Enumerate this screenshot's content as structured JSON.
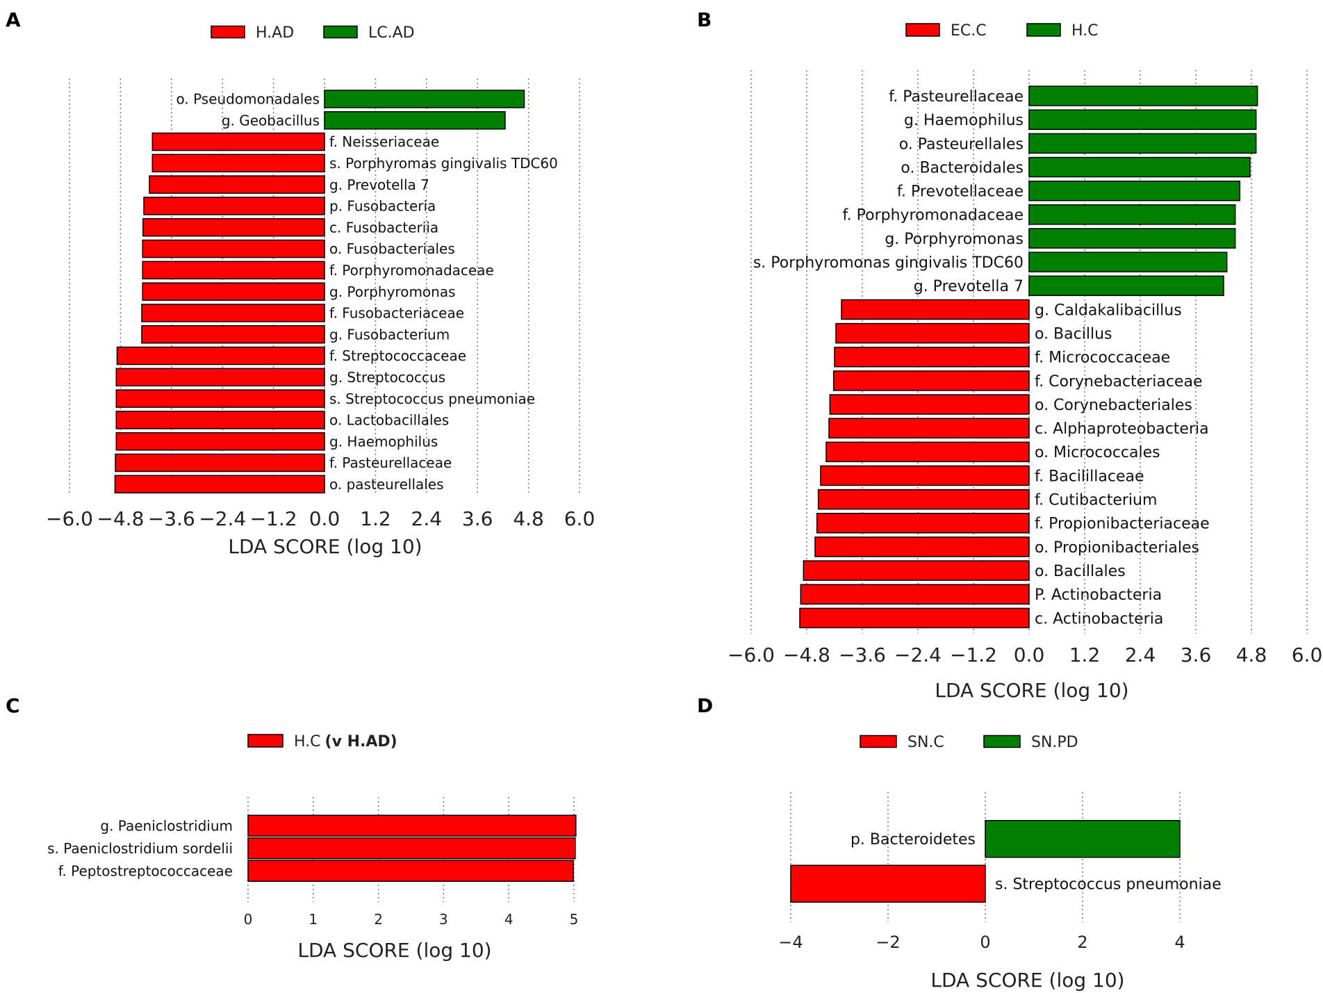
{
  "colors": {
    "neg": "#ff0000",
    "pos": "#008000",
    "border": "#000000",
    "grid": "#777777"
  },
  "chart_data": [
    {
      "panel": "A",
      "type": "bar",
      "orientation": "horizontal",
      "legend": [
        {
          "label": "H.AD",
          "color": "#ff0000"
        },
        {
          "label": "LC.AD",
          "color": "#008000"
        }
      ],
      "xlabel": "LDA SCORE (log 10)",
      "xlim": [
        -6.0,
        6.0
      ],
      "xticks": [
        "−6.0",
        "−4.8",
        "−3.6",
        "−2.4",
        "−1.2",
        "0.0",
        "1.2",
        "2.4",
        "3.6",
        "4.8",
        "6.0"
      ],
      "categories": [
        "o. Pseudomonadales",
        "g. Geobacillus",
        "f. Neisseriaceae",
        "s. Porphyromas gingivalis TDC60",
        "g. Prevotella 7",
        "p. Fusobacteria",
        "c. Fusobacteriia",
        "o. Fusobacteriales",
        "f. Porphyromonadaceae",
        "g. Porphyromonas",
        "f. Fusobacteriaceae",
        "g. Fusobacterium",
        "f. Streptococcaceae",
        "g. Streptococcus",
        "s. Streptococcus pneumoniae",
        "o. Lactobacillales",
        "g. Haemophilus",
        "f. Pasteurellaceae",
        "o. pasteurellales"
      ],
      "values": [
        4.7,
        4.25,
        -4.05,
        -4.05,
        -4.12,
        -4.25,
        -4.27,
        -4.28,
        -4.28,
        -4.28,
        -4.3,
        -4.3,
        -4.88,
        -4.9,
        -4.9,
        -4.9,
        -4.9,
        -4.92,
        -4.93
      ]
    },
    {
      "panel": "B",
      "type": "bar",
      "orientation": "horizontal",
      "legend": [
        {
          "label": "EC.C",
          "color": "#ff0000"
        },
        {
          "label": "H.C",
          "color": "#008000"
        }
      ],
      "xlabel": "LDA SCORE (log 10)",
      "xlim": [
        -6.0,
        6.0
      ],
      "xticks": [
        "−6.0",
        "−4.8",
        "−3.6",
        "−2.4",
        "−1.2",
        "0.0",
        "1.2",
        "2.4",
        "3.6",
        "4.8",
        "6.0"
      ],
      "categories": [
        "f. Pasteurellaceae",
        "g. Haemophilus",
        "o. Pasteurellales",
        "o. Bacteroidales",
        "f. Prevotellaceae",
        "f. Porphyromonadaceae",
        "g. Porphyromonas",
        "s. Porphyromonas gingivalis TDC60",
        "g. Prevotella 7",
        "g. Caldakalibacillus",
        "o. Bacillus",
        "f.  Micrococcaceae",
        "f. Corynebacteriaceae",
        "o. Corynebacteriales",
        "c. Alphaproteobacteria",
        "o. Micrococcales",
        "f. Bacilillaceae",
        "f. Cutibacterium",
        "f. Propionibacteriaceae",
        "o. Propionibacteriales",
        "o. Bacillales",
        "P. Actinobacteria",
        "c. Actinobacteria"
      ],
      "values": [
        4.93,
        4.9,
        4.9,
        4.77,
        4.55,
        4.45,
        4.45,
        4.27,
        4.2,
        -4.05,
        -4.17,
        -4.2,
        -4.22,
        -4.3,
        -4.32,
        -4.38,
        -4.5,
        -4.55,
        -4.58,
        -4.62,
        -4.87,
        -4.93,
        -4.95
      ]
    },
    {
      "panel": "C",
      "type": "bar",
      "orientation": "horizontal",
      "legend": [
        {
          "label": "H.C",
          "color": "#ff0000",
          "suffix": "(v H.AD)"
        }
      ],
      "xlabel": "LDA SCORE (log 10)",
      "xlim": [
        0,
        5
      ],
      "xticks": [
        "0",
        "1",
        "2",
        "3",
        "4",
        "5"
      ],
      "categories": [
        "g. Paeniclostridium",
        "s. Paeniclostridium sordelii",
        "f. Peptostreptococcaceae"
      ],
      "values": [
        5.03,
        5.02,
        4.99
      ]
    },
    {
      "panel": "D",
      "type": "bar",
      "orientation": "horizontal",
      "legend": [
        {
          "label": "SN.C",
          "color": "#ff0000"
        },
        {
          "label": "SN.PD",
          "color": "#008000"
        }
      ],
      "xlabel": "LDA SCORE (log 10)",
      "xlim": [
        -4,
        4
      ],
      "xticks": [
        "−4",
        "−2",
        "0",
        "2",
        "4"
      ],
      "categories": [
        "p. Bacteroidetes",
        "s. Streptococcus pneumoniae"
      ],
      "values": [
        4.0,
        -4.05
      ]
    }
  ]
}
